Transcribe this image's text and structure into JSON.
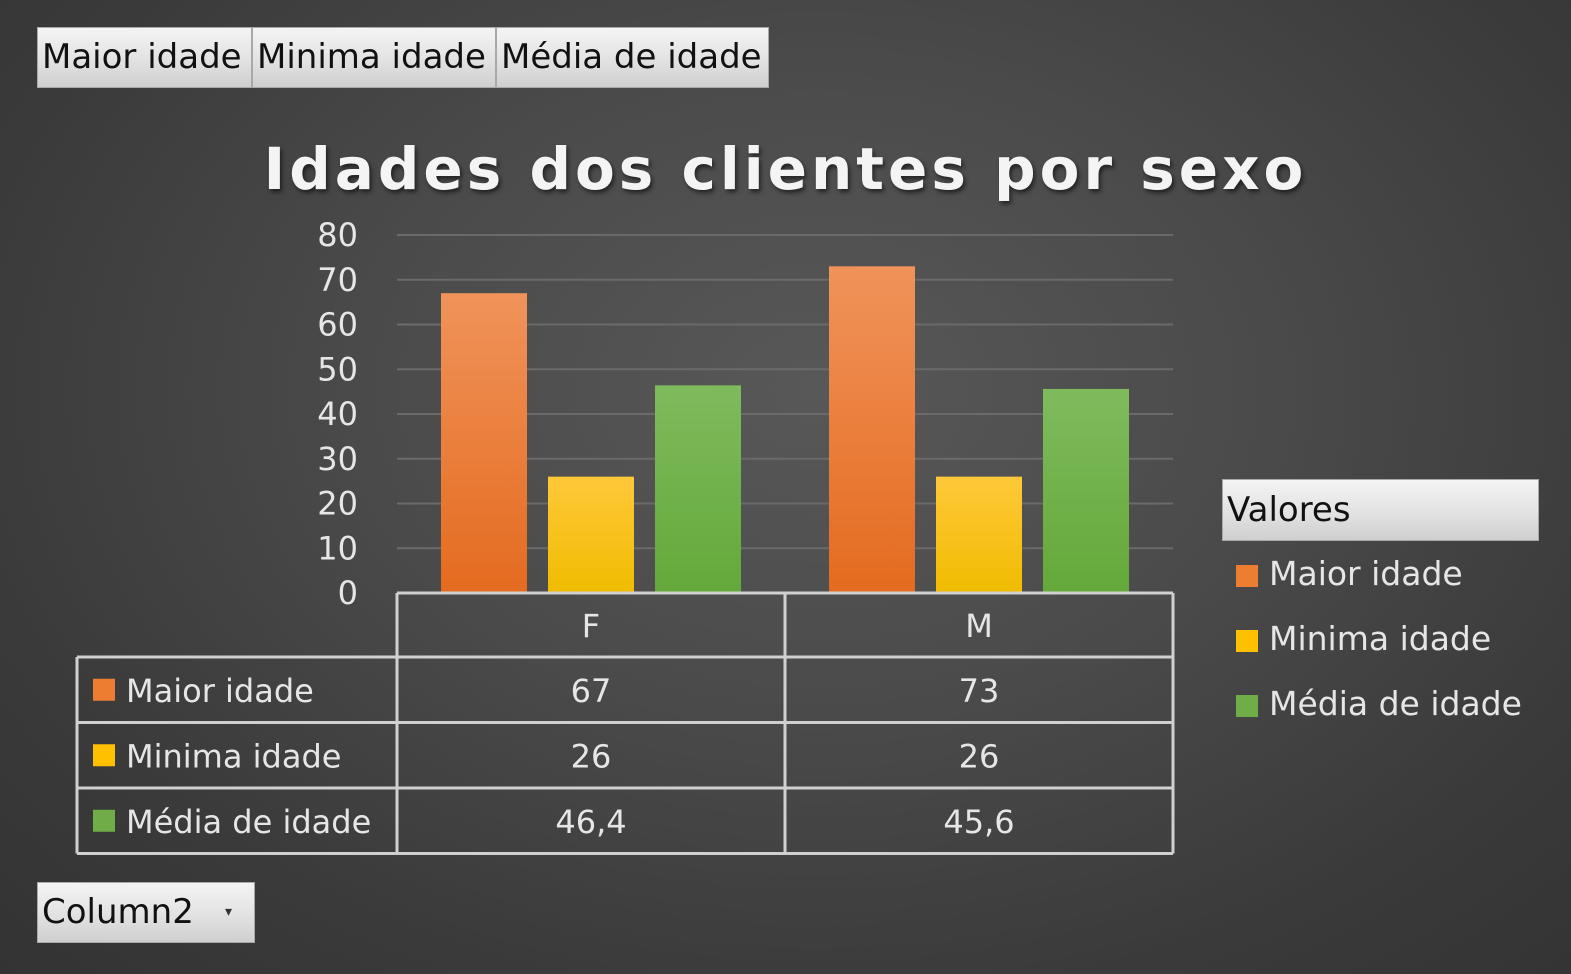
{
  "field_buttons": {
    "maior": "Maior idade",
    "minima": "Minima idade",
    "media": "Média de idade"
  },
  "legend": {
    "title": "Valores",
    "items": [
      {
        "label": "Maior idade",
        "color": "#ed7d31"
      },
      {
        "label": "Minima idade",
        "color": "#ffc000"
      },
      {
        "label": "Média de idade",
        "color": "#70ad47"
      }
    ]
  },
  "filter": {
    "label": "Column2",
    "arrow_icon": "dropdown-arrow-icon"
  },
  "chart_data": {
    "type": "bar",
    "title": "Idades dos clientes por sexo",
    "categories": [
      "F",
      "M"
    ],
    "series": [
      {
        "name": "Maior idade",
        "values": [
          67,
          73
        ],
        "labels": [
          "67",
          "73"
        ],
        "color": "#ed7d31"
      },
      {
        "name": "Minima idade",
        "values": [
          26,
          26
        ],
        "labels": [
          "26",
          "26"
        ],
        "color": "#ffc000"
      },
      {
        "name": "Média de idade",
        "values": [
          46.4,
          45.6
        ],
        "labels": [
          "46,4",
          "45,6"
        ],
        "color": "#70ad47"
      }
    ],
    "ylim": [
      0,
      80
    ],
    "yticks": [
      0,
      10,
      20,
      30,
      40,
      50,
      60,
      70,
      80
    ],
    "grid": true,
    "legend_position": "right",
    "data_table": true
  }
}
